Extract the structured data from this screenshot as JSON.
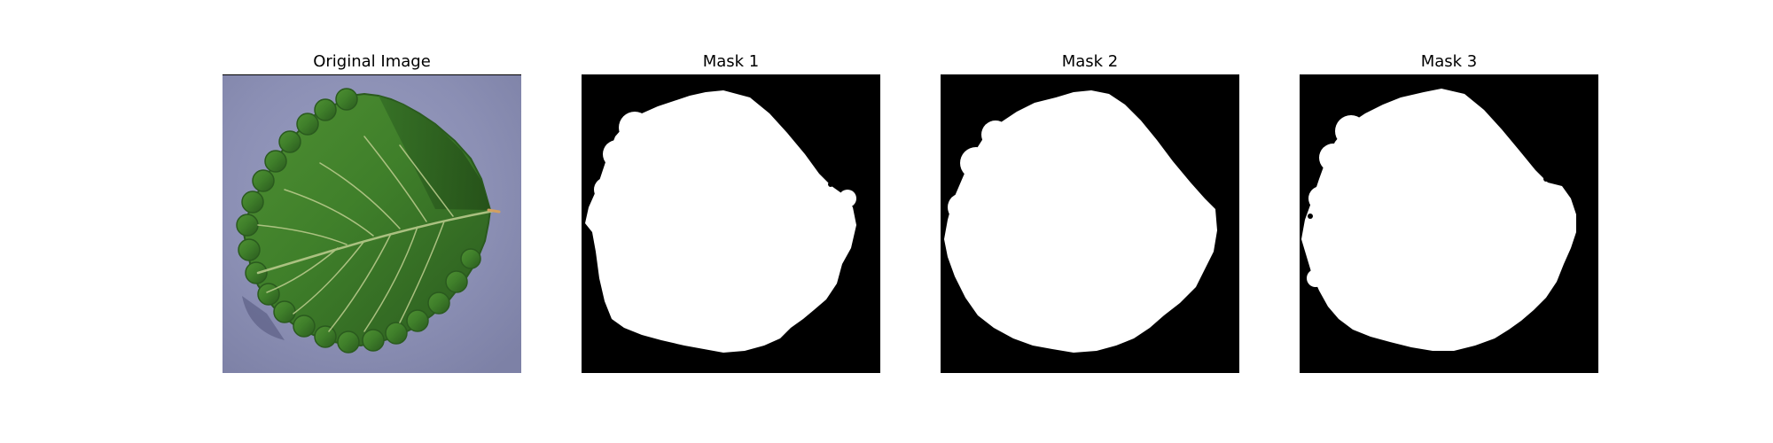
{
  "figure": {
    "panels": [
      {
        "title": "Original Image",
        "kind": "photo",
        "subject": "green-leaf-on-grey-background"
      },
      {
        "title": "Mask 1",
        "kind": "mask"
      },
      {
        "title": "Mask 2",
        "kind": "mask"
      },
      {
        "title": "Mask 3",
        "kind": "mask"
      }
    ],
    "colors": {
      "mask_background": "#000000",
      "mask_foreground": "#ffffff",
      "photo_background": "#8b8fb4",
      "leaf_green": "#3f7f2a",
      "leaf_dark": "#2a5a1e"
    }
  }
}
